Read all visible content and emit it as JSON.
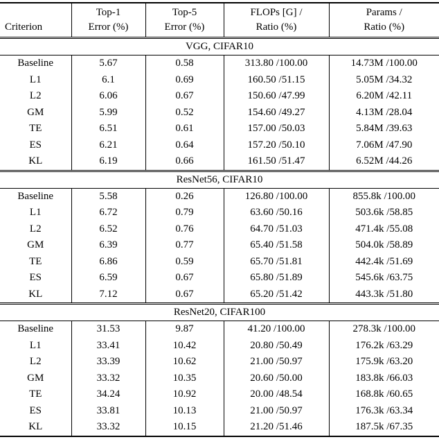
{
  "page": {
    "background": "#ffffff",
    "text_color": "#000000",
    "rule_color": "#000000"
  },
  "table": {
    "header": {
      "criterion": "Criterion",
      "columns": [
        {
          "line1": "Top-1",
          "line2": "Error (%)"
        },
        {
          "line1": "Top-5",
          "line2": "Error (%)"
        },
        {
          "line1": "FLOPs [G] /",
          "line2": "Ratio (%)"
        },
        {
          "line1": "Params /",
          "line2": "Ratio (%)"
        }
      ]
    },
    "sections": [
      {
        "title": "VGG, CIFAR10",
        "rows": [
          [
            "Baseline",
            "5.67",
            "0.58",
            "313.80 /100.00",
            "14.73M /100.00"
          ],
          [
            "L1",
            "6.1",
            "0.69",
            "160.50 /51.15",
            "5.05M /34.32"
          ],
          [
            "L2",
            "6.06",
            "0.67",
            "150.60 /47.99",
            "6.20M /42.11"
          ],
          [
            "GM",
            "5.99",
            "0.52",
            "154.60 /49.27",
            "4.13M /28.04"
          ],
          [
            "TE",
            "6.51",
            "0.61",
            "157.00 /50.03",
            "5.84M /39.63"
          ],
          [
            "ES",
            "6.21",
            "0.64",
            "157.20 /50.10",
            "7.06M /47.90"
          ],
          [
            "KL",
            "6.19",
            "0.66",
            "161.50 /51.47",
            "6.52M /44.26"
          ]
        ]
      },
      {
        "title": "ResNet56, CIFAR10",
        "rows": [
          [
            "Baseline",
            "5.58",
            "0.26",
            "126.80 /100.00",
            "855.8k /100.00"
          ],
          [
            "L1",
            "6.72",
            "0.79",
            "63.60 /50.16",
            "503.6k /58.85"
          ],
          [
            "L2",
            "6.52",
            "0.76",
            "64.70 /51.03",
            "471.4k /55.08"
          ],
          [
            "GM",
            "6.39",
            "0.77",
            "65.40 /51.58",
            "504.0k /58.89"
          ],
          [
            "TE",
            "6.86",
            "0.59",
            "65.70 /51.81",
            "442.4k /51.69"
          ],
          [
            "ES",
            "6.59",
            "0.67",
            "65.80 /51.89",
            "545.6k /63.75"
          ],
          [
            "KL",
            "7.12",
            "0.67",
            "65.20 /51.42",
            "443.3k /51.80"
          ]
        ]
      },
      {
        "title": "ResNet20, CIFAR100",
        "rows": [
          [
            "Baseline",
            "31.53",
            "9.87",
            "41.20 /100.00",
            "278.3k /100.00"
          ],
          [
            "L1",
            "33.41",
            "10.42",
            "20.80 /50.49",
            "176.2k /63.29"
          ],
          [
            "L2",
            "33.39",
            "10.62",
            "21.00 /50.97",
            "175.9k /63.20"
          ],
          [
            "GM",
            "33.32",
            "10.35",
            "20.60 /50.00",
            "183.8k /66.03"
          ],
          [
            "TE",
            "34.24",
            "10.92",
            "20.00 /48.54",
            "168.8k /60.65"
          ],
          [
            "ES",
            "33.81",
            "10.13",
            "21.00 /50.97",
            "176.3k /63.34"
          ],
          [
            "KL",
            "33.32",
            "10.15",
            "21.20 /51.46",
            "187.5k /67.35"
          ]
        ]
      }
    ]
  }
}
